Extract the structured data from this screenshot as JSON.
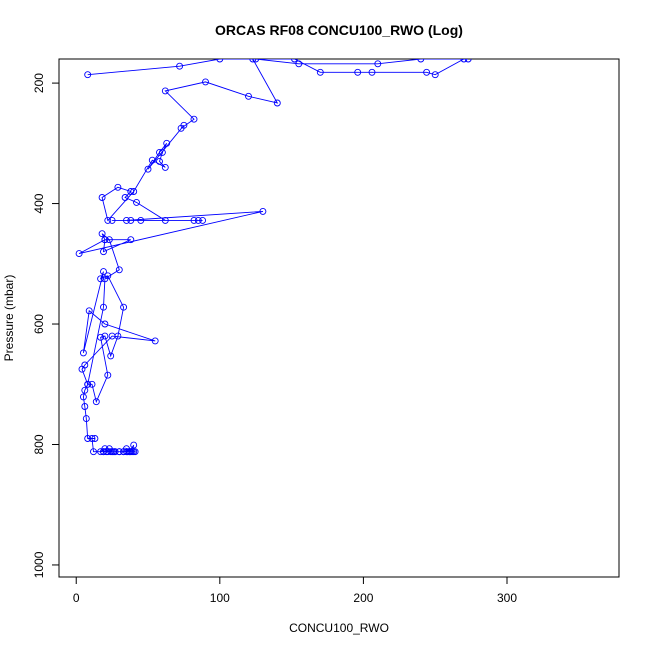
{
  "chart_data": {
    "type": "line",
    "title": "ORCAS RF08 CONCU100_RWO (Log)",
    "xlabel": "CONCU100_RWO",
    "ylabel": "Pressure (mbar)",
    "xlim": [
      -12,
      378
    ],
    "ylim": [
      1020,
      160
    ],
    "x_ticks": [
      0,
      100,
      200,
      300
    ],
    "y_ticks": [
      200,
      400,
      600,
      800,
      1000
    ],
    "series_color": "#0000ff",
    "marker": "open-circle",
    "grid": false,
    "legend": "none",
    "series": [
      {
        "x": [
          26,
          30,
          27,
          22,
          25,
          33,
          38,
          35,
          37,
          40,
          41,
          39,
          40,
          37,
          38,
          35,
          36,
          33,
          30,
          27,
          24,
          21,
          19,
          17,
          20,
          23,
          25,
          19,
          12,
          11,
          13,
          8,
          7,
          6,
          5,
          6,
          8,
          11,
          14,
          22,
          17,
          20,
          24,
          29,
          33,
          22,
          17,
          19,
          5,
          9,
          20,
          55,
          25,
          6,
          4,
          8,
          19,
          20,
          30,
          23,
          18,
          20,
          19,
          38,
          20,
          2,
          130,
          35,
          25,
          38,
          45,
          85,
          82,
          88,
          62,
          42,
          34,
          38,
          29,
          18,
          22,
          40,
          53,
          62,
          58,
          60,
          63,
          58,
          50,
          75,
          73,
          82,
          62,
          90,
          120,
          140,
          123,
          152,
          170,
          196,
          206,
          244,
          250,
          270,
          273,
          240,
          210,
          155,
          125,
          100,
          72,
          8
        ],
        "y": [
          812,
          812,
          812,
          812,
          812,
          812,
          812,
          812,
          812,
          812,
          812,
          812,
          801,
          812,
          812,
          807,
          812,
          812,
          812,
          812,
          812,
          812,
          812,
          812,
          807,
          807,
          812,
          812,
          812,
          790,
          790,
          790,
          757,
          737,
          721,
          710,
          700,
          700,
          729,
          685,
          622,
          620,
          653,
          620,
          572,
          520,
          525,
          513,
          648,
          578,
          600,
          628,
          620,
          668,
          675,
          700,
          572,
          525,
          510,
          460,
          450,
          460,
          480,
          460,
          460,
          483,
          413,
          428,
          428,
          428,
          428,
          428,
          428,
          428,
          428,
          398,
          390,
          380,
          373,
          390,
          428,
          380,
          328,
          340,
          330,
          315,
          300,
          315,
          343,
          270,
          275,
          260,
          213,
          198,
          222,
          233,
          160,
          160,
          182,
          182,
          182,
          182,
          186,
          160,
          160,
          160,
          168,
          168,
          160,
          160,
          172,
          186
        ]
      }
    ]
  }
}
